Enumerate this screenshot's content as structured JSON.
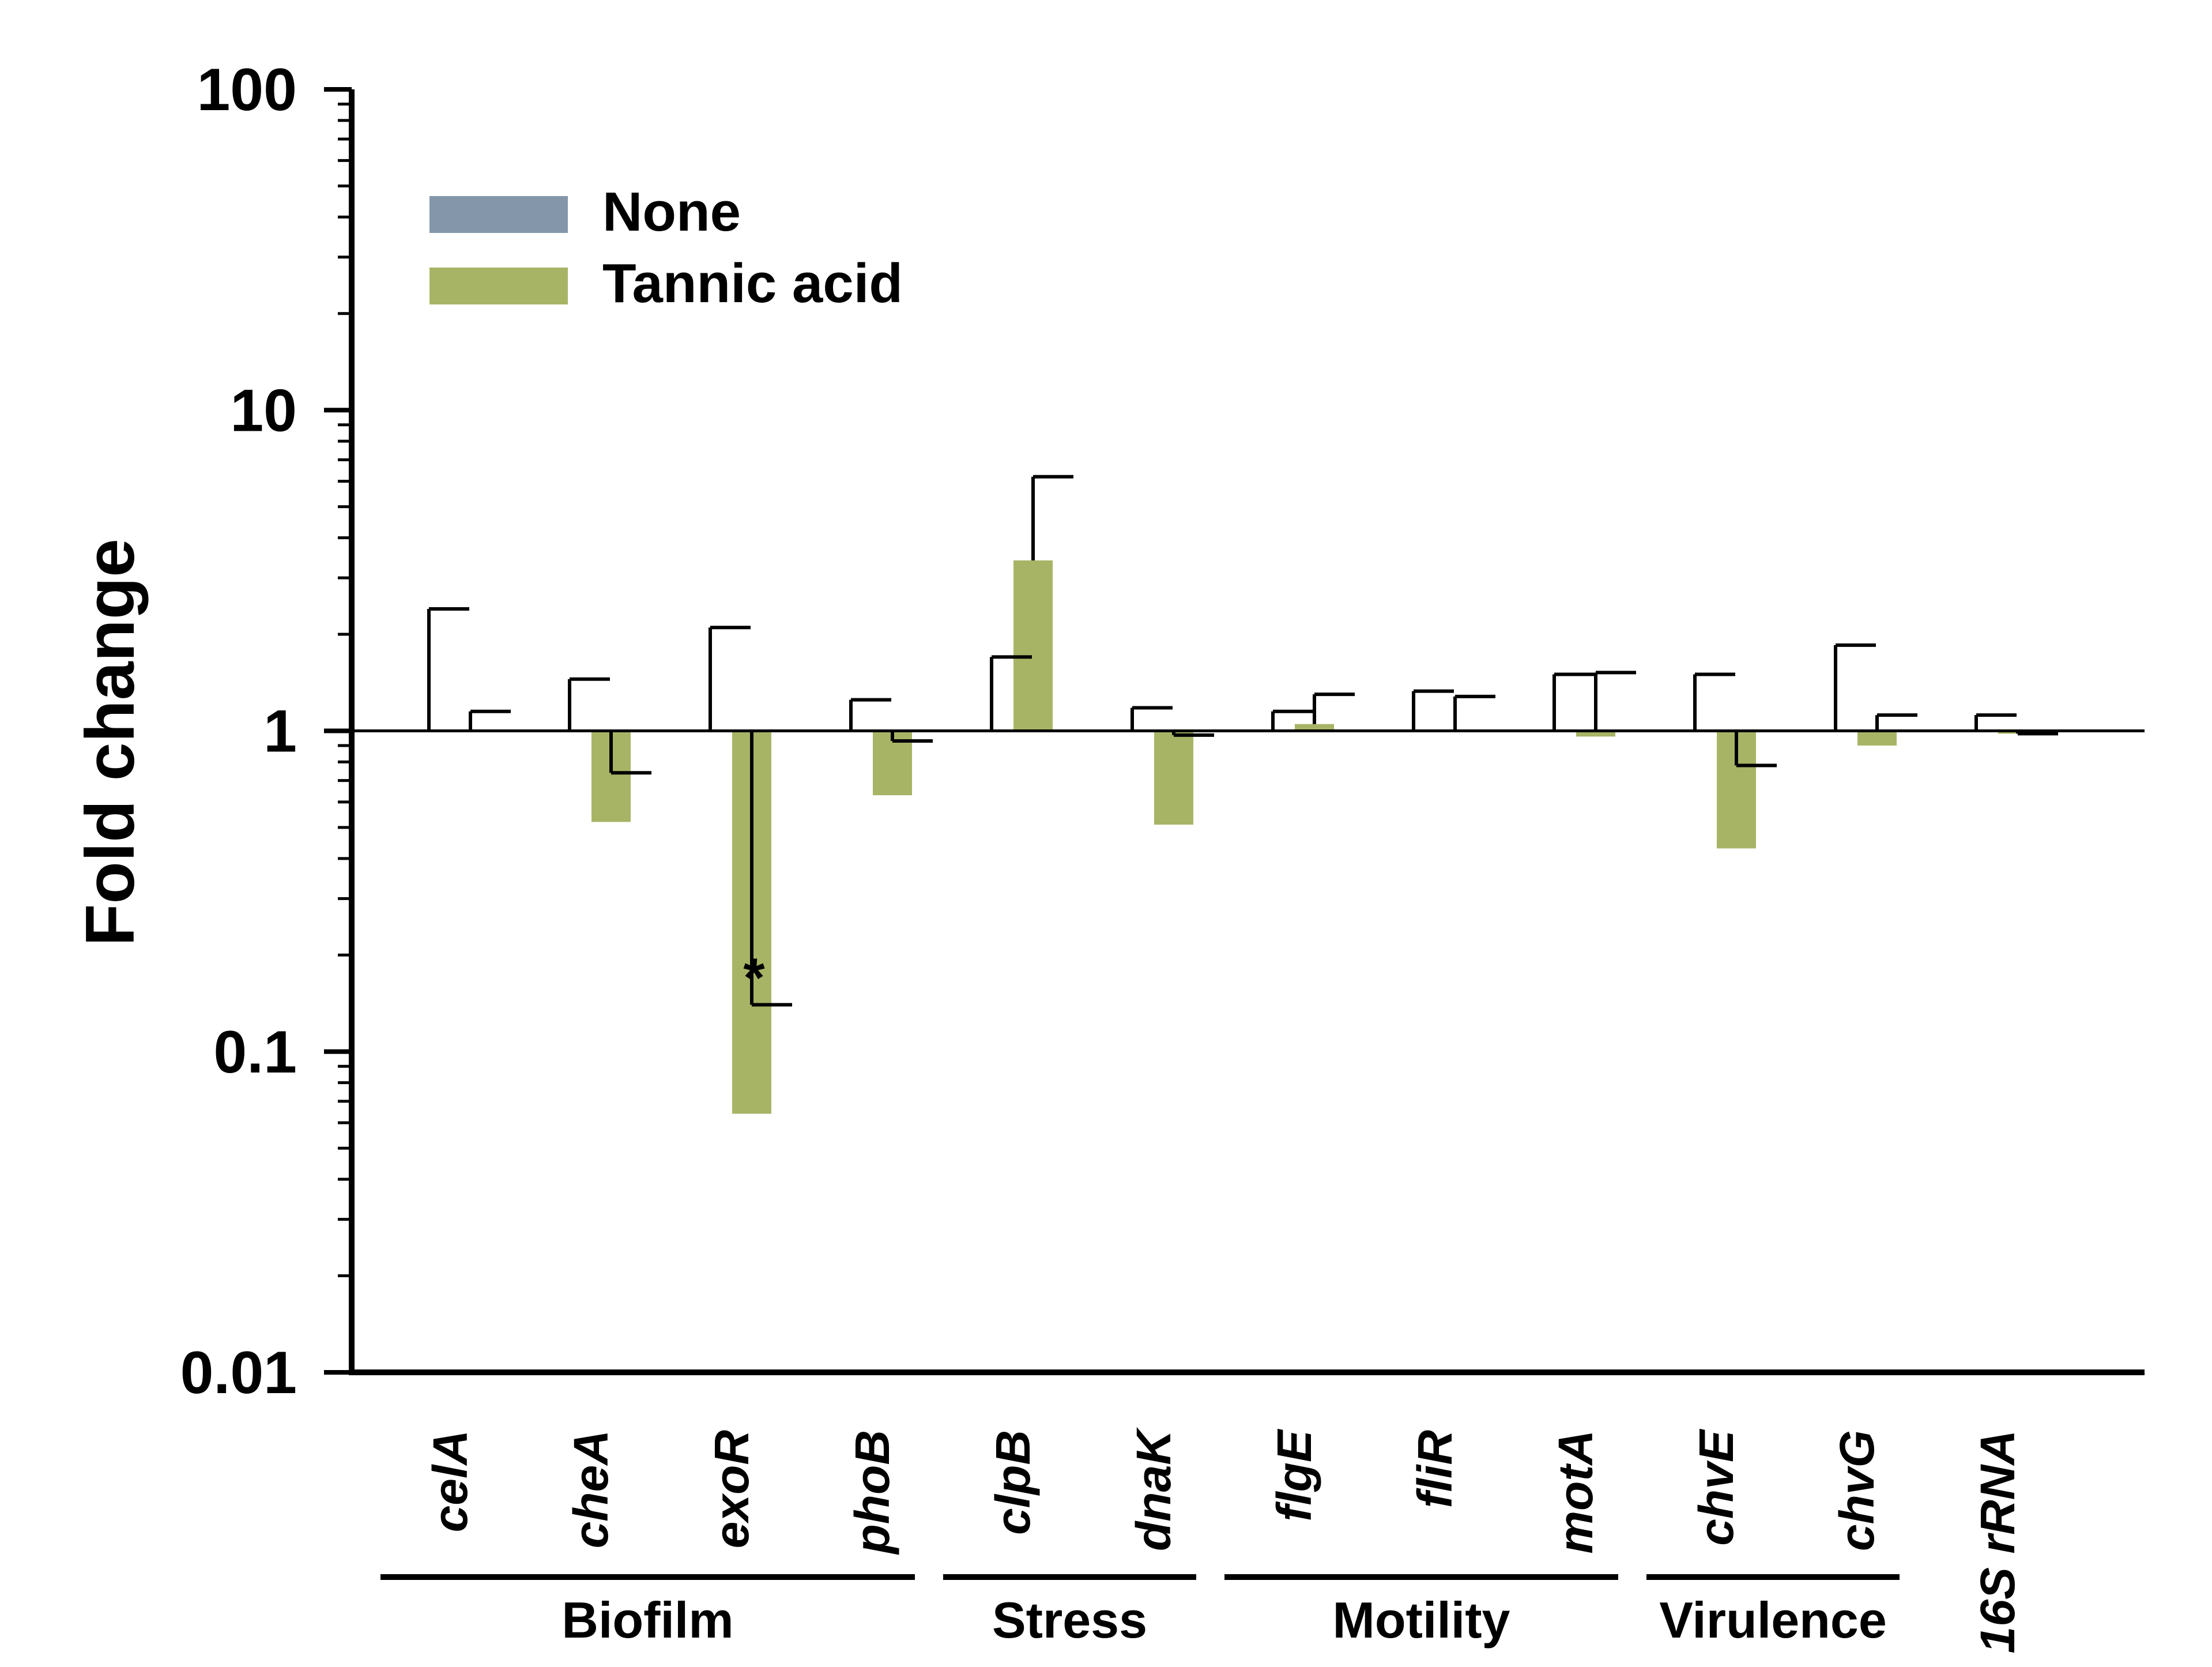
{
  "chart_data": {
    "type": "bar",
    "ylabel": "Fold change",
    "yscale": "log",
    "ylim": [
      0.01,
      100
    ],
    "yticks": [
      {
        "value": 100,
        "label": "100"
      },
      {
        "value": 10,
        "label": "10"
      },
      {
        "value": 1,
        "label": "1"
      },
      {
        "value": 0.1,
        "label": "0.1"
      },
      {
        "value": 0.01,
        "label": "0.01"
      }
    ],
    "reference_line": 1,
    "categories": [
      "celA",
      "cheA",
      "exoR",
      "phoB",
      "clpB",
      "dnaK",
      "flgE",
      "fliR",
      "motA",
      "chvE",
      "chvG",
      "16S rRNA"
    ],
    "series": [
      {
        "name": "None",
        "color": "#8497AA",
        "values": [
          1,
          1,
          1,
          1,
          1,
          1,
          1,
          1,
          1,
          1,
          1,
          1
        ],
        "error_upper": [
          2.4,
          1.45,
          2.1,
          1.25,
          1.7,
          1.18,
          1.15,
          1.33,
          1.5,
          1.5,
          1.85,
          1.12
        ]
      },
      {
        "name": "Tannic acid",
        "color": "#A8B465",
        "values": [
          1.0,
          0.52,
          0.064,
          0.63,
          3.4,
          0.51,
          1.05,
          1.0,
          0.96,
          0.43,
          0.9,
          0.98
        ],
        "error_upper": [
          1.15,
          0.74,
          0.14,
          0.93,
          6.2,
          0.97,
          1.3,
          1.28,
          1.52,
          0.78,
          1.12,
          0.98
        ]
      }
    ],
    "annotations": [
      {
        "category": "exoR",
        "series": "Tannic acid",
        "text": "*"
      }
    ],
    "groups": [
      {
        "label": "Biofilm",
        "from": 0,
        "to": 3
      },
      {
        "label": "Stress",
        "from": 4,
        "to": 5
      },
      {
        "label": "Motility",
        "from": 6,
        "to": 8
      },
      {
        "label": "Virulence",
        "from": 9,
        "to": 10
      },
      {
        "label": "",
        "from": 11,
        "to": 11
      }
    ],
    "legend": "top-left"
  }
}
